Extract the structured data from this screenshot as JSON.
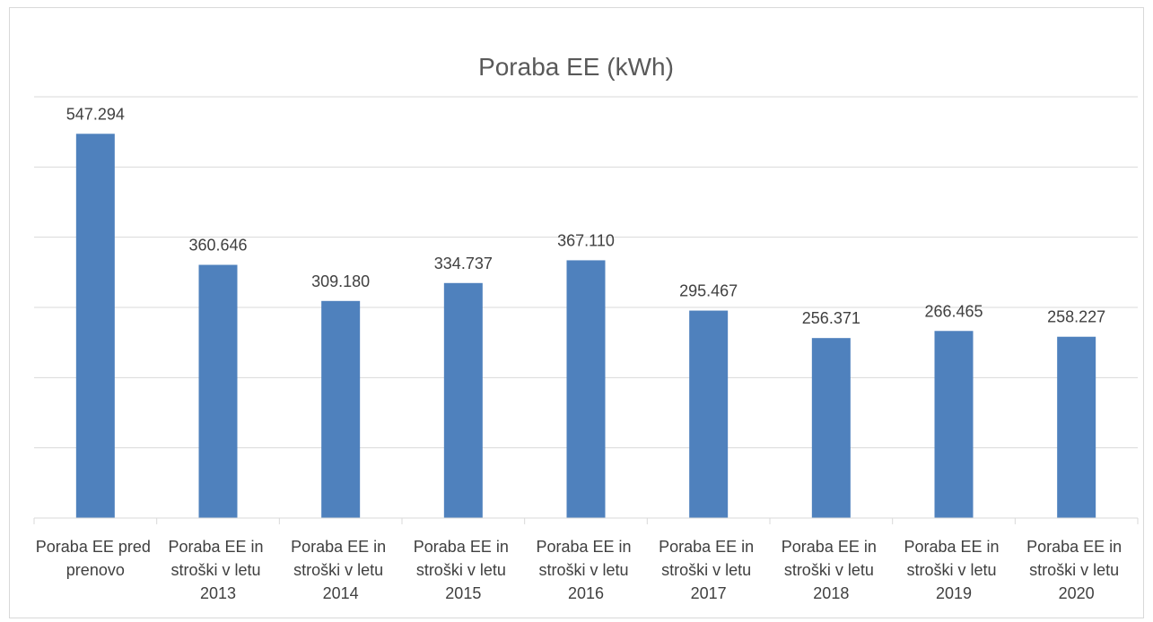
{
  "chart_data": {
    "type": "bar",
    "title": "Poraba EE  (kWh)",
    "categories": [
      "Poraba EE pred prenovo",
      "Poraba EE in stroški v letu 2013",
      "Poraba EE in stroški v letu 2014",
      "Poraba EE in stroški v letu 2015",
      "Poraba EE in stroški v letu 2016",
      "Poraba EE in stroški v letu 2017",
      "Poraba EE in stroški v letu 2018",
      "Poraba EE in stroški v letu 2019",
      "Poraba EE in stroški v letu 2020"
    ],
    "values": [
      547294,
      360646,
      309180,
      334737,
      367110,
      295467,
      256371,
      266465,
      258227
    ],
    "value_labels": [
      "547.294",
      "360.646",
      "309.180",
      "334.737",
      "367.110",
      "295.467",
      "256.371",
      "266.465",
      "258.227"
    ],
    "color": "#4f81bd",
    "ylim": [
      0,
      600000
    ],
    "yticks": [
      0,
      100000,
      200000,
      300000,
      400000,
      500000,
      600000
    ],
    "grid": true
  }
}
